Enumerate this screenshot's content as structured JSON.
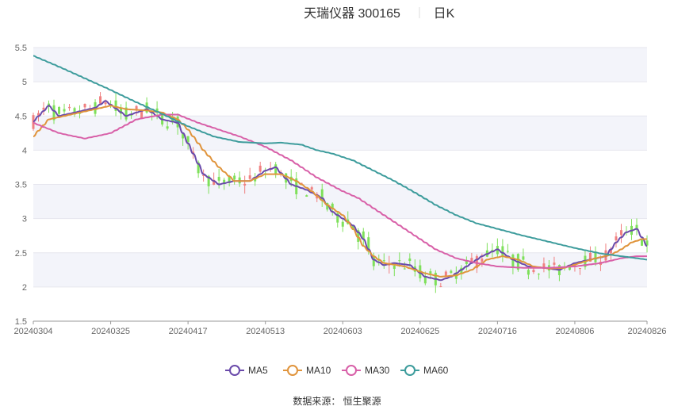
{
  "header": {
    "title": "天瑞仪器 300165",
    "period": "日K"
  },
  "footer": {
    "source": "数据来源： 恒生聚源"
  },
  "chart_data": {
    "type": "candlestick",
    "y_ticks": [
      "5.5",
      "5",
      "4.5",
      "4",
      "3.5",
      "3",
      "2.5",
      "2",
      "1.5"
    ],
    "ylim": [
      1.5,
      5.5
    ],
    "x_ticks": [
      "20240304",
      "20240325",
      "20240417",
      "20240513",
      "20240603",
      "20240625",
      "20240716",
      "20240806",
      "20240826"
    ],
    "x_tick_index": [
      0,
      15,
      30,
      45,
      60,
      75,
      90,
      105,
      119
    ],
    "grid": true,
    "legend_position": "bottom",
    "colors": {
      "up": "#f08080",
      "down": "#7ee05a",
      "ma5": "#6a4aaa",
      "ma10": "#e0943c",
      "ma30": "#d860a8",
      "ma60": "#3d9c9c"
    },
    "legend": [
      "MA5",
      "MA10",
      "MA30",
      "MA60"
    ],
    "series": [
      {
        "name": "MA5",
        "knots": [
          [
            0,
            4.42
          ],
          [
            3,
            4.65
          ],
          [
            5,
            4.5
          ],
          [
            8,
            4.55
          ],
          [
            12,
            4.62
          ],
          [
            14,
            4.72
          ],
          [
            18,
            4.5
          ],
          [
            22,
            4.6
          ],
          [
            25,
            4.45
          ],
          [
            28,
            4.4
          ],
          [
            30,
            4.1
          ],
          [
            33,
            3.65
          ],
          [
            36,
            3.5
          ],
          [
            39,
            3.55
          ],
          [
            42,
            3.55
          ],
          [
            45,
            3.7
          ],
          [
            47,
            3.75
          ],
          [
            50,
            3.5
          ],
          [
            53,
            3.42
          ],
          [
            56,
            3.3
          ],
          [
            58,
            3.1
          ],
          [
            60,
            3.0
          ],
          [
            62,
            2.9
          ],
          [
            64,
            2.7
          ],
          [
            66,
            2.4
          ],
          [
            68,
            2.32
          ],
          [
            70,
            2.35
          ],
          [
            73,
            2.32
          ],
          [
            76,
            2.15
          ],
          [
            79,
            2.1
          ],
          [
            81,
            2.15
          ],
          [
            84,
            2.3
          ],
          [
            87,
            2.45
          ],
          [
            90,
            2.55
          ],
          [
            93,
            2.4
          ],
          [
            96,
            2.3
          ],
          [
            99,
            2.28
          ],
          [
            102,
            2.25
          ],
          [
            105,
            2.35
          ],
          [
            108,
            2.4
          ],
          [
            111,
            2.45
          ],
          [
            113,
            2.65
          ],
          [
            115,
            2.8
          ],
          [
            117,
            2.85
          ],
          [
            119,
            2.6
          ]
        ]
      },
      {
        "name": "MA10",
        "knots": [
          [
            0,
            4.2
          ],
          [
            3,
            4.45
          ],
          [
            6,
            4.5
          ],
          [
            9,
            4.55
          ],
          [
            12,
            4.6
          ],
          [
            15,
            4.65
          ],
          [
            18,
            4.6
          ],
          [
            22,
            4.58
          ],
          [
            25,
            4.55
          ],
          [
            28,
            4.45
          ],
          [
            30,
            4.3
          ],
          [
            33,
            4.0
          ],
          [
            36,
            3.75
          ],
          [
            39,
            3.55
          ],
          [
            42,
            3.55
          ],
          [
            45,
            3.65
          ],
          [
            48,
            3.65
          ],
          [
            51,
            3.55
          ],
          [
            54,
            3.4
          ],
          [
            57,
            3.2
          ],
          [
            60,
            3.05
          ],
          [
            62,
            2.85
          ],
          [
            64,
            2.6
          ],
          [
            66,
            2.45
          ],
          [
            68,
            2.35
          ],
          [
            72,
            2.3
          ],
          [
            76,
            2.2
          ],
          [
            79,
            2.15
          ],
          [
            82,
            2.17
          ],
          [
            85,
            2.25
          ],
          [
            88,
            2.4
          ],
          [
            91,
            2.45
          ],
          [
            94,
            2.4
          ],
          [
            97,
            2.3
          ],
          [
            100,
            2.27
          ],
          [
            103,
            2.28
          ],
          [
            106,
            2.35
          ],
          [
            109,
            2.42
          ],
          [
            112,
            2.47
          ],
          [
            114,
            2.55
          ],
          [
            116,
            2.65
          ],
          [
            118,
            2.7
          ],
          [
            119,
            2.7
          ]
        ]
      },
      {
        "name": "MA30",
        "knots": [
          [
            0,
            4.4
          ],
          [
            5,
            4.25
          ],
          [
            10,
            4.17
          ],
          [
            15,
            4.25
          ],
          [
            20,
            4.45
          ],
          [
            25,
            4.52
          ],
          [
            28,
            4.52
          ],
          [
            32,
            4.4
          ],
          [
            36,
            4.3
          ],
          [
            40,
            4.2
          ],
          [
            45,
            4.05
          ],
          [
            50,
            3.85
          ],
          [
            55,
            3.6
          ],
          [
            60,
            3.4
          ],
          [
            63,
            3.3
          ],
          [
            66,
            3.15
          ],
          [
            70,
            2.95
          ],
          [
            74,
            2.75
          ],
          [
            78,
            2.55
          ],
          [
            82,
            2.42
          ],
          [
            86,
            2.35
          ],
          [
            90,
            2.3
          ],
          [
            95,
            2.28
          ],
          [
            100,
            2.28
          ],
          [
            105,
            2.3
          ],
          [
            110,
            2.35
          ],
          [
            114,
            2.42
          ],
          [
            117,
            2.45
          ],
          [
            119,
            2.45
          ]
        ]
      },
      {
        "name": "MA60",
        "knots": [
          [
            0,
            5.38
          ],
          [
            5,
            5.22
          ],
          [
            10,
            5.05
          ],
          [
            15,
            4.88
          ],
          [
            20,
            4.7
          ],
          [
            25,
            4.53
          ],
          [
            30,
            4.35
          ],
          [
            35,
            4.2
          ],
          [
            40,
            4.12
          ],
          [
            45,
            4.1
          ],
          [
            48,
            4.11
          ],
          [
            52,
            4.08
          ],
          [
            55,
            4.0
          ],
          [
            58,
            3.95
          ],
          [
            62,
            3.85
          ],
          [
            66,
            3.7
          ],
          [
            70,
            3.55
          ],
          [
            74,
            3.38
          ],
          [
            78,
            3.2
          ],
          [
            82,
            3.05
          ],
          [
            86,
            2.93
          ],
          [
            90,
            2.85
          ],
          [
            95,
            2.75
          ],
          [
            100,
            2.66
          ],
          [
            105,
            2.57
          ],
          [
            110,
            2.49
          ],
          [
            114,
            2.45
          ],
          [
            117,
            2.42
          ],
          [
            119,
            2.4
          ]
        ]
      }
    ]
  }
}
